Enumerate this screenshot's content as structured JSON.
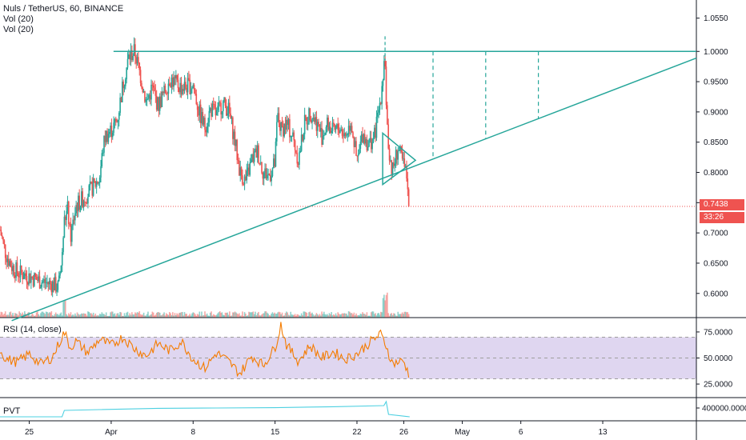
{
  "header": {
    "symbol_line": "Nuls / TetherUS, 60, BINANCE",
    "vol_line_1": "Vol (20)",
    "vol_line_2": "Vol (20)"
  },
  "rsi": {
    "label": "RSI (14, close)"
  },
  "pvt": {
    "label": "PVT"
  },
  "price_tags": {
    "last_price": "0.7438",
    "countdown": "33:26"
  },
  "colors": {
    "up": "#26a69a",
    "down": "#ef5350",
    "trendline": "#26a69a",
    "rsi_line": "#f57c00",
    "rsi_band": "#d1c4e9",
    "pvt_line": "#4dd0e1",
    "price_line": "#ef5350",
    "axis": "#131722"
  },
  "chart_data": [
    {
      "type": "candlestick",
      "title": "Nuls / TetherUS, 60, BINANCE",
      "price_axis_ticks": [
        "1.0550",
        "1.0000",
        "0.9500",
        "0.9000",
        "0.8500",
        "0.8000",
        "0.7500",
        "0.7000",
        "0.6500",
        "0.6000"
      ],
      "price_axis_values": [
        1.055,
        1.0,
        0.95,
        0.9,
        0.85,
        0.8,
        0.75,
        0.7,
        0.65,
        0.6
      ],
      "ylim": [
        0.56,
        1.085
      ],
      "time_axis_ticks": [
        "25",
        "Apr",
        "8",
        "15",
        "22",
        "26",
        "May",
        "6",
        "13"
      ],
      "time_axis_days": [
        -6,
        1,
        8,
        15,
        22,
        26,
        31,
        36,
        43
      ],
      "xlim_days": [
        -8.5,
        51
      ],
      "last_price": 0.7438,
      "close_series": [
        {
          "day": -8.5,
          "price": 0.705
        },
        {
          "day": -8.0,
          "price": 0.665
        },
        {
          "day": -7.5,
          "price": 0.645
        },
        {
          "day": -7.0,
          "price": 0.635
        },
        {
          "day": -6.0,
          "price": 0.628
        },
        {
          "day": -5.0,
          "price": 0.62
        },
        {
          "day": -4.0,
          "price": 0.615
        },
        {
          "day": -3.5,
          "price": 0.61
        },
        {
          "day": -3.2,
          "price": 0.665
        },
        {
          "day": -3.0,
          "price": 0.72
        },
        {
          "day": -2.7,
          "price": 0.74
        },
        {
          "day": -2.5,
          "price": 0.69
        },
        {
          "day": -2.0,
          "price": 0.745
        },
        {
          "day": -1.0,
          "price": 0.765
        },
        {
          "day": 0.0,
          "price": 0.79
        },
        {
          "day": 0.3,
          "price": 0.84
        },
        {
          "day": 0.5,
          "price": 0.86
        },
        {
          "day": 1.0,
          "price": 0.87
        },
        {
          "day": 1.5,
          "price": 0.885
        },
        {
          "day": 2.0,
          "price": 0.945
        },
        {
          "day": 2.5,
          "price": 0.99
        },
        {
          "day": 3.0,
          "price": 1.0
        },
        {
          "day": 3.5,
          "price": 0.96
        },
        {
          "day": 4.0,
          "price": 0.915
        },
        {
          "day": 4.5,
          "price": 0.94
        },
        {
          "day": 5.0,
          "price": 0.91
        },
        {
          "day": 5.5,
          "price": 0.93
        },
        {
          "day": 6.0,
          "price": 0.955
        },
        {
          "day": 7.0,
          "price": 0.94
        },
        {
          "day": 8.0,
          "price": 0.945
        },
        {
          "day": 8.5,
          "price": 0.9
        },
        {
          "day": 9.0,
          "price": 0.875
        },
        {
          "day": 9.5,
          "price": 0.905
        },
        {
          "day": 10.0,
          "price": 0.895
        },
        {
          "day": 10.5,
          "price": 0.915
        },
        {
          "day": 11.0,
          "price": 0.905
        },
        {
          "day": 11.5,
          "price": 0.86
        },
        {
          "day": 12.0,
          "price": 0.8
        },
        {
          "day": 12.5,
          "price": 0.785
        },
        {
          "day": 13.0,
          "price": 0.82
        },
        {
          "day": 13.5,
          "price": 0.835
        },
        {
          "day": 14.0,
          "price": 0.8
        },
        {
          "day": 14.5,
          "price": 0.795
        },
        {
          "day": 15.0,
          "price": 0.815
        },
        {
          "day": 15.2,
          "price": 0.895
        },
        {
          "day": 15.5,
          "price": 0.87
        },
        {
          "day": 16.0,
          "price": 0.88
        },
        {
          "day": 16.5,
          "price": 0.86
        },
        {
          "day": 17.0,
          "price": 0.82
        },
        {
          "day": 17.5,
          "price": 0.88
        },
        {
          "day": 18.0,
          "price": 0.9
        },
        {
          "day": 18.5,
          "price": 0.885
        },
        {
          "day": 19.0,
          "price": 0.86
        },
        {
          "day": 19.5,
          "price": 0.88
        },
        {
          "day": 20.0,
          "price": 0.865
        },
        {
          "day": 20.5,
          "price": 0.875
        },
        {
          "day": 21.0,
          "price": 0.86
        },
        {
          "day": 21.5,
          "price": 0.885
        },
        {
          "day": 22.0,
          "price": 0.815
        },
        {
          "day": 22.5,
          "price": 0.865
        },
        {
          "day": 23.0,
          "price": 0.845
        },
        {
          "day": 23.5,
          "price": 0.86
        },
        {
          "day": 24.0,
          "price": 0.92
        },
        {
          "day": 24.2,
          "price": 0.96
        },
        {
          "day": 24.4,
          "price": 0.985
        },
        {
          "day": 24.6,
          "price": 0.86
        },
        {
          "day": 25.0,
          "price": 0.8
        },
        {
          "day": 25.5,
          "price": 0.84
        },
        {
          "day": 26.0,
          "price": 0.81
        },
        {
          "day": 26.3,
          "price": 0.79
        },
        {
          "day": 26.5,
          "price": 0.7438
        }
      ],
      "drawings": {
        "resistance_line_price": 1.0,
        "ascending_trendline": [
          {
            "day": -7.5,
            "price": 0.555
          },
          {
            "day": 51,
            "price": 0.989
          }
        ],
        "projection_dashes_days": [
          28.5,
          33.0,
          37.5
        ],
        "triangle": [
          {
            "day": 24.2,
            "price": 0.865
          },
          {
            "day": 27.0,
            "price": 0.82
          },
          {
            "day": 24.2,
            "price": 0.78
          }
        ]
      }
    },
    {
      "type": "line",
      "title": "RSI (14, close)",
      "y_axis_ticks": [
        "75.0000",
        "50.0000",
        "25.0000"
      ],
      "y_axis_values": [
        75,
        50,
        25
      ],
      "band": [
        30,
        70
      ],
      "ylim": [
        12,
        88
      ],
      "series": [
        {
          "day": -8.5,
          "value": 58
        },
        {
          "day": -8,
          "value": 49
        },
        {
          "day": -7,
          "value": 46
        },
        {
          "day": -6,
          "value": 54
        },
        {
          "day": -5,
          "value": 44
        },
        {
          "day": -4,
          "value": 51
        },
        {
          "day": -3,
          "value": 75
        },
        {
          "day": -2.5,
          "value": 60
        },
        {
          "day": -2,
          "value": 66
        },
        {
          "day": -1,
          "value": 55
        },
        {
          "day": 0,
          "value": 68
        },
        {
          "day": 1,
          "value": 62
        },
        {
          "day": 2,
          "value": 70
        },
        {
          "day": 3,
          "value": 59
        },
        {
          "day": 4,
          "value": 52
        },
        {
          "day": 5,
          "value": 64
        },
        {
          "day": 6,
          "value": 57
        },
        {
          "day": 7,
          "value": 66
        },
        {
          "day": 8,
          "value": 49
        },
        {
          "day": 9,
          "value": 40
        },
        {
          "day": 10,
          "value": 55
        },
        {
          "day": 11,
          "value": 47
        },
        {
          "day": 12,
          "value": 35
        },
        {
          "day": 13,
          "value": 52
        },
        {
          "day": 14,
          "value": 43
        },
        {
          "day": 15,
          "value": 60
        },
        {
          "day": 15.5,
          "value": 82
        },
        {
          "day": 16,
          "value": 62
        },
        {
          "day": 17,
          "value": 47
        },
        {
          "day": 18,
          "value": 62
        },
        {
          "day": 19,
          "value": 50
        },
        {
          "day": 20,
          "value": 56
        },
        {
          "day": 21,
          "value": 49
        },
        {
          "day": 22,
          "value": 54
        },
        {
          "day": 23,
          "value": 64
        },
        {
          "day": 24,
          "value": 73
        },
        {
          "day": 24.5,
          "value": 62
        },
        {
          "day": 25,
          "value": 45
        },
        {
          "day": 26,
          "value": 47
        },
        {
          "day": 26.5,
          "value": 32
        }
      ]
    },
    {
      "type": "line",
      "title": "PVT",
      "y_axis_ticks": [
        "400000.0000"
      ],
      "series": [
        {
          "day": -8.5,
          "level": 0.05
        },
        {
          "day": -3.2,
          "level": 0.05
        },
        {
          "day": -3.0,
          "level": 0.45
        },
        {
          "day": 0,
          "level": 0.5
        },
        {
          "day": 5,
          "level": 0.58
        },
        {
          "day": 10,
          "level": 0.6
        },
        {
          "day": 15,
          "level": 0.62
        },
        {
          "day": 20,
          "level": 0.68
        },
        {
          "day": 24.3,
          "level": 0.75
        },
        {
          "day": 24.5,
          "level": 1.0
        },
        {
          "day": 24.7,
          "level": 0.2
        },
        {
          "day": 26.5,
          "level": 0.05
        }
      ]
    }
  ]
}
